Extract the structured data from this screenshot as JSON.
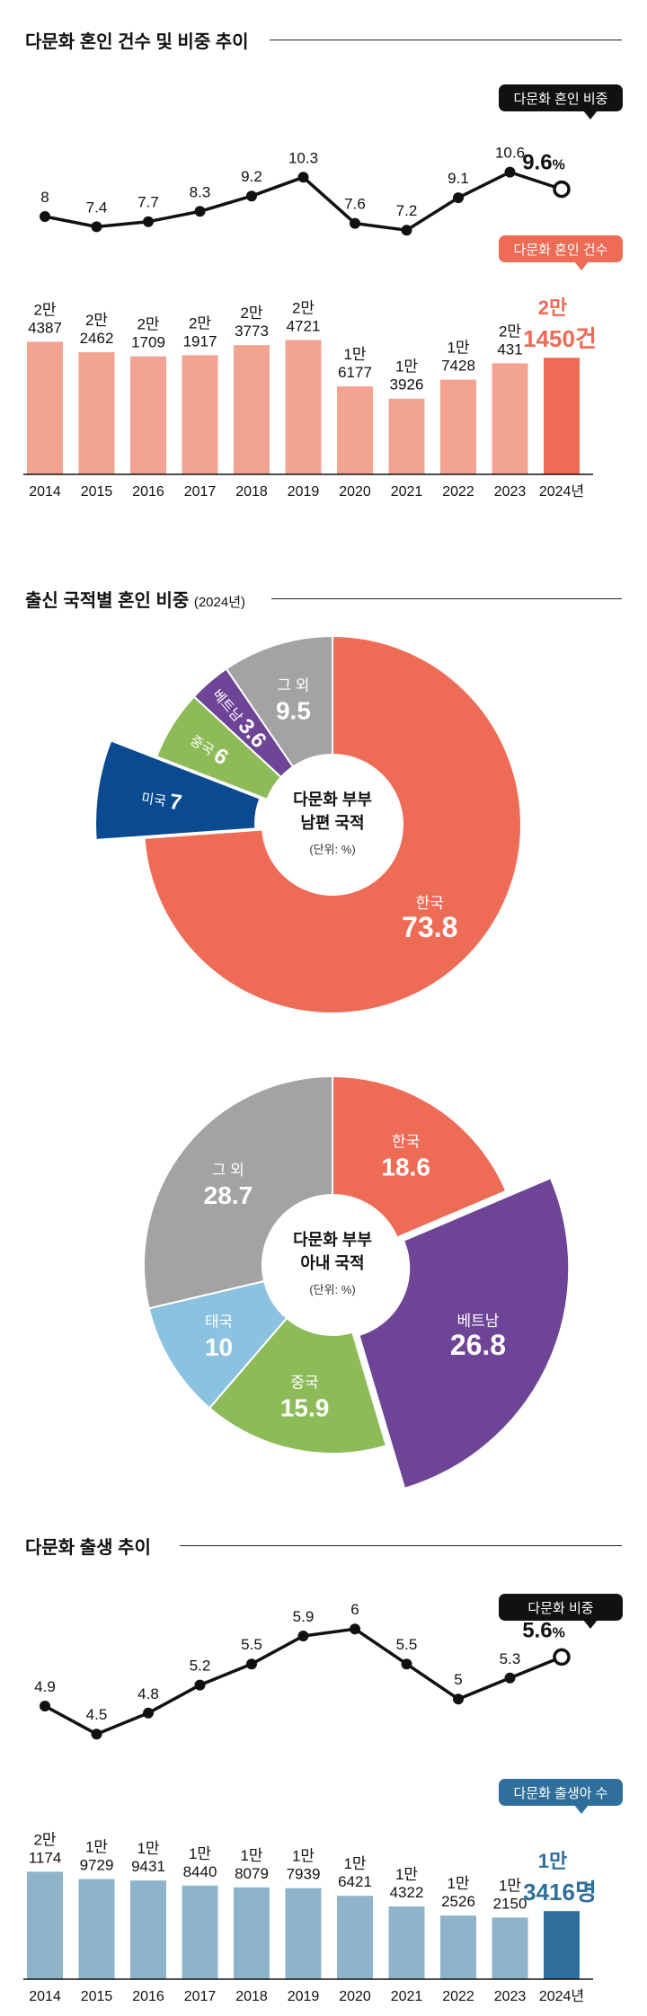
{
  "sections": {
    "marriage": {
      "title": "다문화 혼인 건수 및 비중 추이"
    },
    "nationality": {
      "title": "출신 국적별 혼인 비중",
      "subtitle": "(2024년)"
    },
    "birth": {
      "title": "다문화 출생 추이"
    }
  },
  "chart_data": [
    {
      "type": "line",
      "id": "marriage-share",
      "legend": "다문화 혼인 비중",
      "categories": [
        "2014",
        "2015",
        "2016",
        "2017",
        "2018",
        "2019",
        "2020",
        "2021",
        "2022",
        "2023",
        "2024"
      ],
      "values": [
        8,
        7.4,
        7.7,
        8.3,
        9.2,
        10.3,
        7.6,
        7.2,
        9.1,
        10.6,
        9.6
      ],
      "labels": [
        "8",
        "7.4",
        "7.7",
        "8.3",
        "9.2",
        "10.3",
        "7.6",
        "7.2",
        "9.1",
        "10.6",
        "9.6"
      ],
      "last_unit": "%",
      "color": "#111111"
    },
    {
      "type": "bar",
      "id": "marriage-count",
      "legend": "다문화 혼인 건수",
      "categories": [
        "2014",
        "2015",
        "2016",
        "2017",
        "2018",
        "2019",
        "2020",
        "2021",
        "2022",
        "2023",
        "2024년"
      ],
      "values": [
        24387,
        22462,
        21709,
        21917,
        23773,
        24721,
        16177,
        13926,
        17428,
        20431,
        21450
      ],
      "labels": [
        [
          "2만",
          "4387"
        ],
        [
          "2만",
          "2462"
        ],
        [
          "2만",
          "1709"
        ],
        [
          "2만",
          "1917"
        ],
        [
          "2만",
          "3773"
        ],
        [
          "2만",
          "4721"
        ],
        [
          "1만",
          "6177"
        ],
        [
          "1만",
          "3926"
        ],
        [
          "1만",
          "7428"
        ],
        [
          "2만",
          "431"
        ],
        [
          "2만",
          "1450건"
        ]
      ],
      "color": "#f2a391",
      "highlight_color": "#ee6b56"
    },
    {
      "type": "pie",
      "id": "husband-nationality",
      "center_title": [
        "다문화 부부",
        "남편 국적"
      ],
      "center_unit": "(단위: %)",
      "slices": [
        {
          "label": "한국",
          "value": 73.8,
          "color": "#ee6b56"
        },
        {
          "label": "미국",
          "value": 7,
          "color": "#0a4a90"
        },
        {
          "label": "중국",
          "value": 6,
          "color": "#8dbb58"
        },
        {
          "label": "베트남",
          "value": 3.6,
          "color": "#6e4496"
        },
        {
          "label": "그 외",
          "value": 9.5,
          "color": "#a3a3a3"
        }
      ],
      "exploded": "미국"
    },
    {
      "type": "pie",
      "id": "wife-nationality",
      "center_title": [
        "다문화 부부",
        "아내 국적"
      ],
      "center_unit": "(단위: %)",
      "slices": [
        {
          "label": "한국",
          "value": 18.6,
          "color": "#ee6b56"
        },
        {
          "label": "베트남",
          "value": 26.8,
          "color": "#6e4496"
        },
        {
          "label": "중국",
          "value": 15.9,
          "color": "#8dbb58"
        },
        {
          "label": "태국",
          "value": 10,
          "color": "#8bc2e0"
        },
        {
          "label": "그 외",
          "value": 28.7,
          "color": "#a3a3a3"
        }
      ],
      "exploded": "베트남"
    },
    {
      "type": "line",
      "id": "birth-share",
      "legend": "다문화 비중",
      "categories": [
        "2014",
        "2015",
        "2016",
        "2017",
        "2018",
        "2019",
        "2020",
        "2021",
        "2022",
        "2023",
        "2024"
      ],
      "values": [
        4.9,
        4.5,
        4.8,
        5.2,
        5.5,
        5.9,
        6,
        5.5,
        5,
        5.3,
        5.6
      ],
      "labels": [
        "4.9",
        "4.5",
        "4.8",
        "5.2",
        "5.5",
        "5.9",
        "6",
        "5.5",
        "5",
        "5.3",
        "5.6"
      ],
      "last_unit": "%",
      "color": "#111111"
    },
    {
      "type": "bar",
      "id": "birth-count",
      "legend": "다문화 출생아 수",
      "categories": [
        "2014",
        "2015",
        "2016",
        "2017",
        "2018",
        "2019",
        "2020",
        "2021",
        "2022",
        "2023",
        "2024년"
      ],
      "values": [
        21174,
        19729,
        19431,
        18440,
        18079,
        17939,
        16421,
        14322,
        12526,
        12150,
        13416
      ],
      "labels": [
        [
          "2만",
          "1174"
        ],
        [
          "1만",
          "9729"
        ],
        [
          "1만",
          "9431"
        ],
        [
          "1만",
          "8440"
        ],
        [
          "1만",
          "8079"
        ],
        [
          "1만",
          "7939"
        ],
        [
          "1만",
          "6421"
        ],
        [
          "1만",
          "4322"
        ],
        [
          "1만",
          "2526"
        ],
        [
          "1만",
          "2150"
        ],
        [
          "1만",
          "3416명"
        ]
      ],
      "color": "#8eb4cc",
      "highlight_color": "#2f6f9c"
    }
  ]
}
